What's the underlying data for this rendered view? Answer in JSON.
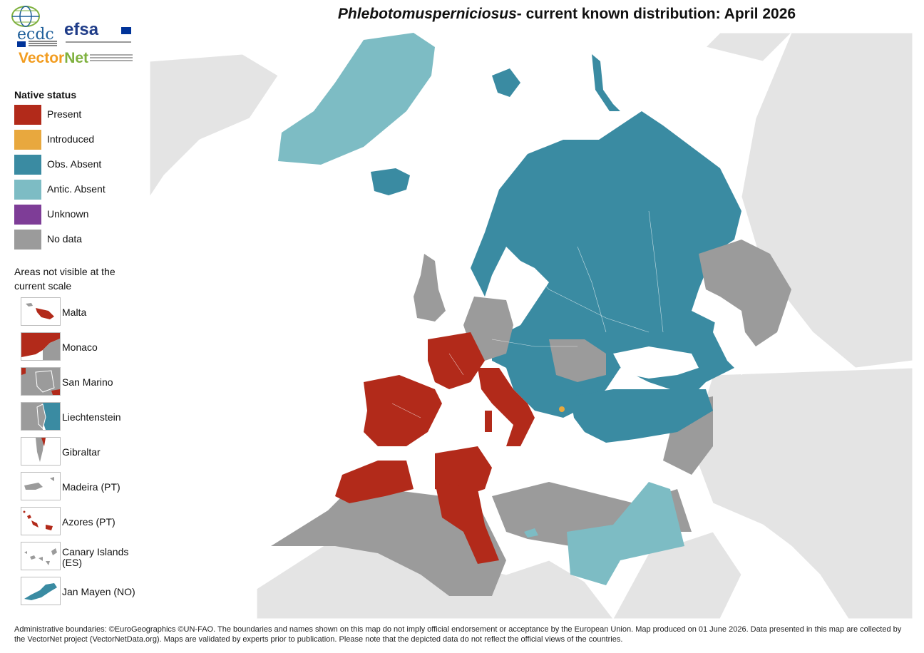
{
  "title": {
    "species": "Phlebotomusperniciosus",
    "rest": "- current known distribution: April 2026"
  },
  "logos": {
    "ecdc": "ecdc",
    "efsa": "efsa",
    "vectornet_1": "Vector",
    "vectornet_2": "Net"
  },
  "legend": {
    "title": "Native status",
    "items": [
      {
        "label": "Present",
        "color": "#b22a1a"
      },
      {
        "label": "Introduced",
        "color": "#e8a83e"
      },
      {
        "label": "Obs. Absent",
        "color": "#3a8ba2"
      },
      {
        "label": "Antic. Absent",
        "color": "#7dbcc4"
      },
      {
        "label": "Unknown",
        "color": "#7e3d97"
      },
      {
        "label": "No data",
        "color": "#9b9b9b"
      }
    ],
    "areas_title": "Areas not visible at the current scale",
    "areas": [
      {
        "label": "Malta"
      },
      {
        "label": "Monaco"
      },
      {
        "label": "San Marino"
      },
      {
        "label": "Liechtenstein"
      },
      {
        "label": "Gibraltar"
      },
      {
        "label": "Madeira (PT)"
      },
      {
        "label": "Azores (PT)"
      },
      {
        "label": "Canary Islands (ES)"
      },
      {
        "label": "Jan Mayen (NO)"
      }
    ]
  },
  "map": {
    "background_land": "#e4e4e4",
    "sea": "#ffffff"
  },
  "footer": "Administrative boundaries: ©EuroGeographics ©UN-FAO. The boundaries and names shown on this map do not imply official endorsement or acceptance by the European Union. Map produced on 01 June 2026. Data presented in this map are collected by the VectorNet project (VectorNetData.org). Maps are validated by experts prior to publication. Please note that the depicted data do not reflect the official views of the countries."
}
